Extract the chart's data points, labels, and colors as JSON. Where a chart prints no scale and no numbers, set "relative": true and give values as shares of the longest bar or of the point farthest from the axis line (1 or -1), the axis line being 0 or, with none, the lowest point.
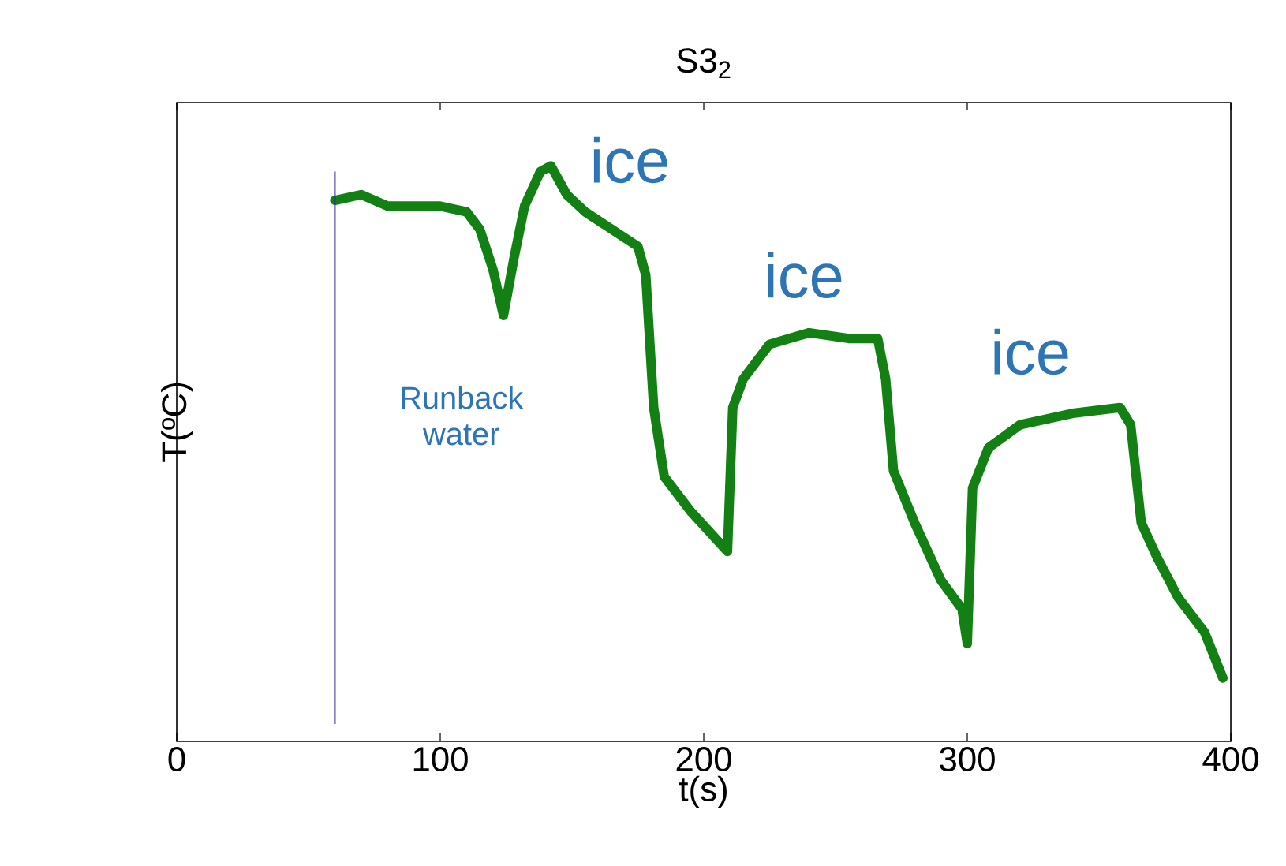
{
  "chart_data": {
    "type": "line",
    "title": "S3$_{2}$",
    "xlabel": "t(s)",
    "ylabel": "T(ºC)",
    "relative": true,
    "xlim": [
      0,
      400
    ],
    "xticks": [
      0,
      100,
      200,
      300,
      400
    ],
    "tick_labels": "x",
    "x": [
      60,
      70,
      80,
      90,
      100,
      110,
      115,
      120,
      124,
      128,
      132,
      138,
      142,
      148,
      155,
      165,
      175,
      178,
      181,
      185,
      195,
      205,
      209,
      211,
      215,
      225,
      240,
      255,
      266,
      269,
      272,
      280,
      290,
      298,
      300,
      302,
      308,
      320,
      340,
      358,
      362,
      366,
      372,
      380,
      390,
      397
    ],
    "series": [
      {
        "color": "#128012",
        "values": [
          0.94,
          0.95,
          0.93,
          0.93,
          0.93,
          0.92,
          0.89,
          0.82,
          0.74,
          0.84,
          0.93,
          0.99,
          1.0,
          0.95,
          0.92,
          0.89,
          0.86,
          0.81,
          0.58,
          0.46,
          0.4,
          0.35,
          0.33,
          0.58,
          0.63,
          0.69,
          0.71,
          0.7,
          0.7,
          0.63,
          0.47,
          0.38,
          0.28,
          0.23,
          0.17,
          0.44,
          0.51,
          0.55,
          0.57,
          0.58,
          0.55,
          0.38,
          0.32,
          0.25,
          0.19,
          0.11
        ]
      }
    ],
    "ref_lines": [
      {
        "axis": "x",
        "value": 60,
        "color": "#3a2a9a"
      }
    ],
    "annotations": [
      "Runback water",
      "ice",
      "ice",
      "ice"
    ]
  }
}
